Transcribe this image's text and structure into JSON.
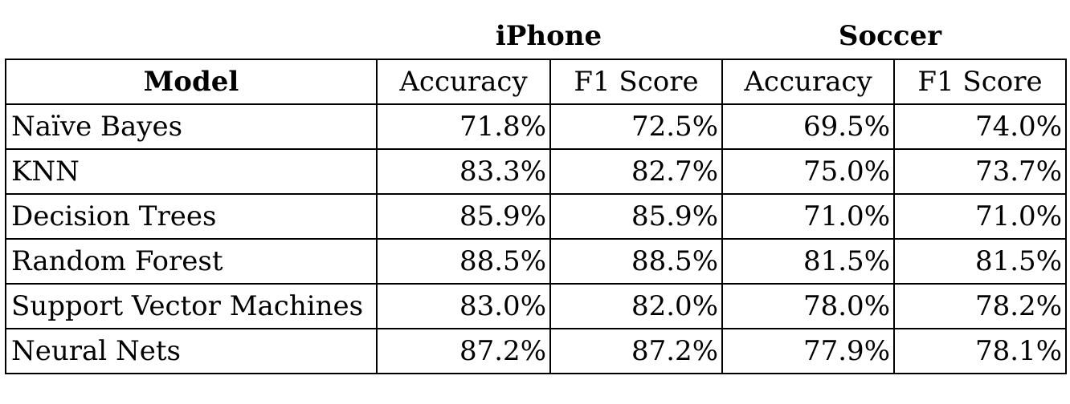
{
  "group_headers": {
    "iphone": "iPhone",
    "soccer": "Soccer"
  },
  "columns": {
    "model": "Model",
    "iphone_accuracy": "Accuracy",
    "iphone_f1": "F1 Score",
    "soccer_accuracy": "Accuracy",
    "soccer_f1": "F1 Score"
  },
  "rows": [
    {
      "model": "Naïve Bayes",
      "iphone_accuracy": "71.8%",
      "iphone_f1": "72.5%",
      "soccer_accuracy": "69.5%",
      "soccer_f1": "74.0%"
    },
    {
      "model": "KNN",
      "iphone_accuracy": "83.3%",
      "iphone_f1": "82.7%",
      "soccer_accuracy": "75.0%",
      "soccer_f1": "73.7%"
    },
    {
      "model": "Decision Trees",
      "iphone_accuracy": "85.9%",
      "iphone_f1": "85.9%",
      "soccer_accuracy": "71.0%",
      "soccer_f1": "71.0%"
    },
    {
      "model": "Random Forest",
      "iphone_accuracy": "88.5%",
      "iphone_f1": "88.5%",
      "soccer_accuracy": "81.5%",
      "soccer_f1": "81.5%"
    },
    {
      "model": "Support Vector Machines",
      "iphone_accuracy": "83.0%",
      "iphone_f1": "82.0%",
      "soccer_accuracy": "78.0%",
      "soccer_f1": "78.2%"
    },
    {
      "model": "Neural Nets",
      "iphone_accuracy": "87.2%",
      "iphone_f1": "87.2%",
      "soccer_accuracy": "77.9%",
      "soccer_f1": "78.1%"
    }
  ]
}
